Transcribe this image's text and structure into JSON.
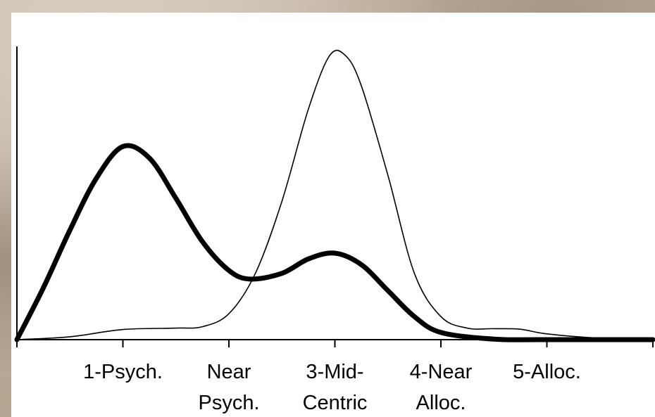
{
  "chart_data": {
    "type": "line",
    "title": "",
    "xlabel": "",
    "ylabel": "",
    "categories": [
      [
        "1-Psych."
      ],
      [
        "Near",
        "Psych."
      ],
      [
        "3-Mid-",
        "Centric"
      ],
      [
        "4-Near",
        "Alloc."
      ],
      [
        "5-Alloc."
      ]
    ],
    "xlim": [
      0,
      6
    ],
    "ylim": [
      0,
      1
    ],
    "grid": false,
    "legend": "none",
    "series": [
      {
        "style": "thick",
        "color": "#000000",
        "points": [
          [
            0,
            0.0
          ],
          [
            0.25,
            0.18
          ],
          [
            0.5,
            0.38
          ],
          [
            0.75,
            0.56
          ],
          [
            1.0,
            0.67
          ],
          [
            1.25,
            0.63
          ],
          [
            1.5,
            0.49
          ],
          [
            1.75,
            0.34
          ],
          [
            2.0,
            0.24
          ],
          [
            2.2,
            0.21
          ],
          [
            2.5,
            0.23
          ],
          [
            2.75,
            0.28
          ],
          [
            3.0,
            0.3
          ],
          [
            3.25,
            0.26
          ],
          [
            3.5,
            0.17
          ],
          [
            3.75,
            0.08
          ],
          [
            4.0,
            0.025
          ],
          [
            4.5,
            0.002
          ],
          [
            5.0,
            0.0
          ],
          [
            6.0,
            0.0
          ]
        ]
      },
      {
        "style": "thin",
        "color": "#000000",
        "points": [
          [
            0,
            0.0
          ],
          [
            0.5,
            0.01
          ],
          [
            1.0,
            0.035
          ],
          [
            1.5,
            0.04
          ],
          [
            1.75,
            0.045
          ],
          [
            2.0,
            0.09
          ],
          [
            2.25,
            0.23
          ],
          [
            2.5,
            0.48
          ],
          [
            2.75,
            0.8
          ],
          [
            2.95,
            0.985
          ],
          [
            3.1,
            0.985
          ],
          [
            3.25,
            0.88
          ],
          [
            3.5,
            0.57
          ],
          [
            3.75,
            0.23
          ],
          [
            4.0,
            0.08
          ],
          [
            4.25,
            0.04
          ],
          [
            4.5,
            0.038
          ],
          [
            4.75,
            0.036
          ],
          [
            5.0,
            0.02
          ],
          [
            5.5,
            0.005
          ],
          [
            6.0,
            0.0
          ]
        ]
      }
    ]
  }
}
